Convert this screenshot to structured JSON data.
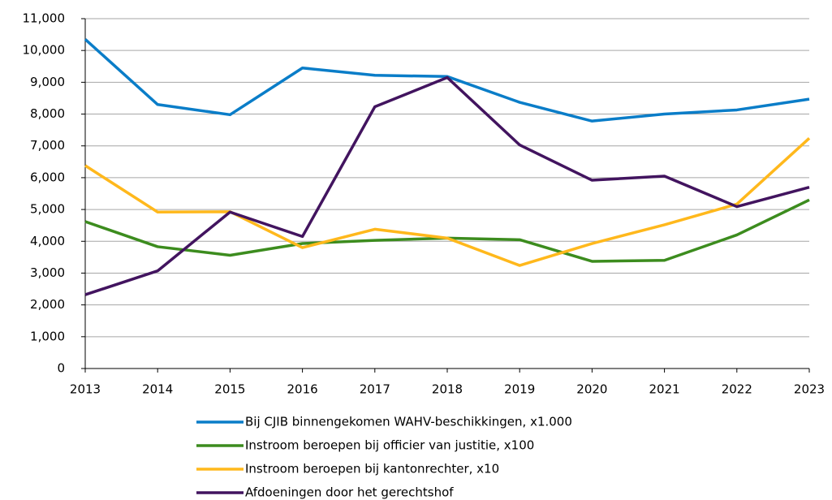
{
  "chart_data": {
    "type": "line",
    "x": [
      2013,
      2014,
      2015,
      2016,
      2017,
      2018,
      2019,
      2020,
      2021,
      2022,
      2023
    ],
    "xlim": [
      2013,
      2023
    ],
    "xticks": [
      2013,
      2014,
      2015,
      2016,
      2017,
      2018,
      2019,
      2020,
      2021,
      2022,
      2023
    ],
    "ylim": [
      0,
      11000
    ],
    "yticks": [
      0,
      {
        "value": 1000,
        "label": "1,000"
      },
      {
        "value": 2000,
        "label": "2,000"
      },
      {
        "value": 3000,
        "label": "3,000"
      },
      {
        "value": 4000,
        "label": "4,000"
      },
      {
        "value": 5000,
        "label": "5,000"
      },
      {
        "value": 6000,
        "label": "6,000"
      },
      {
        "value": 7000,
        "label": "7,000"
      },
      {
        "value": 8000,
        "label": "8,000"
      },
      {
        "value": 9000,
        "label": "9,000"
      },
      {
        "value": 10000,
        "label": "10,000"
      },
      {
        "value": 11000,
        "label": "11,000"
      }
    ],
    "grid": true,
    "legend": "bottom",
    "series": [
      {
        "name": "Bij CJIB binnengekomen WAHV-beschikkingen, x1.000",
        "color": "#0a7dc8",
        "values": [
          10350,
          8300,
          7980,
          9450,
          9220,
          9180,
          8370,
          7780,
          8000,
          8130,
          8470
        ]
      },
      {
        "name": "Instroom beroepen bij officier van justitie, x100",
        "color": "#3c8c1e",
        "values": [
          4620,
          3830,
          3560,
          3930,
          4030,
          4100,
          4050,
          3370,
          3400,
          4200,
          5300
        ]
      },
      {
        "name": "Instroom beroepen bij kantonrechter, x10",
        "color": "#ffb81c",
        "values": [
          6380,
          4920,
          4930,
          3800,
          4380,
          4100,
          3240,
          3930,
          4520,
          5170,
          7240
        ]
      },
      {
        "name": "Afdoeningen door het gerechtshof",
        "color": "#42145f",
        "values": [
          2320,
          3070,
          4920,
          4150,
          8230,
          9150,
          7030,
          5920,
          6050,
          5090,
          5700
        ]
      }
    ]
  }
}
